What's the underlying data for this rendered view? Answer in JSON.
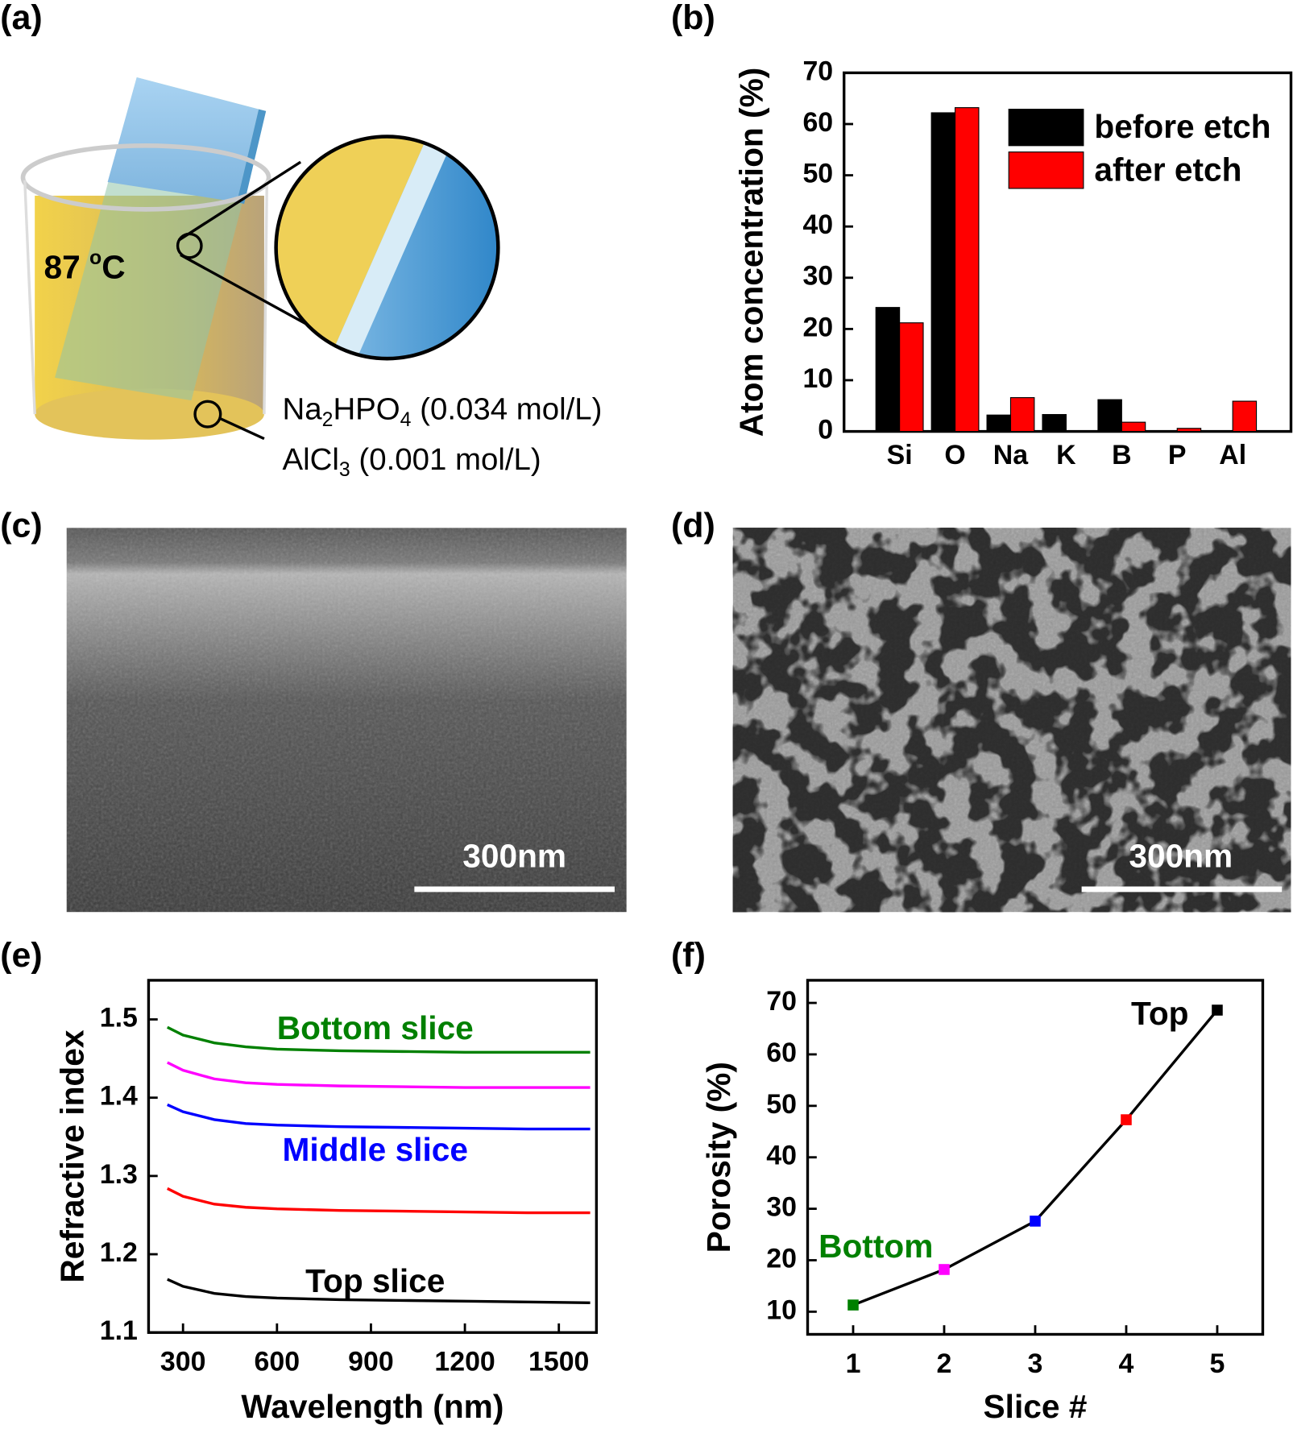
{
  "panels": {
    "labels": [
      "(a)",
      "(b)",
      "(c)",
      "(d)",
      "(e)",
      "(f)"
    ]
  },
  "illustration": {
    "temperature": [
      "87 ",
      "o",
      "C"
    ],
    "solution": [
      [
        "Na",
        "2",
        "HPO",
        "4",
        " (0.034 mol/L)"
      ],
      [
        "AlCl",
        "3",
        " (0.001 mol/L)"
      ]
    ]
  },
  "micrographs": [
    {
      "scale_bar": "300nm"
    },
    {
      "scale_bar": "300nm"
    }
  ],
  "chart_data": [
    {
      "type": "bar",
      "ylabel": "Atom concentration (%)",
      "categories": [
        "Si",
        "O",
        "Na",
        "K",
        "B",
        "P",
        "Al"
      ],
      "series": [
        {
          "name": "before etch",
          "color": "#000000",
          "values": [
            24.2,
            62.2,
            3.2,
            3.3,
            6.2,
            0,
            0
          ]
        },
        {
          "name": "after etch",
          "color": "#ff0000",
          "values": [
            21.2,
            63.2,
            6.6,
            0,
            1.8,
            0.6,
            5.9
          ]
        }
      ],
      "ylim": [
        0,
        70
      ],
      "yticks": [
        0,
        10,
        20,
        30,
        40,
        50,
        60,
        70
      ],
      "legend": "upper right"
    },
    {
      "type": "line",
      "xlabel": "Wavelength (nm)",
      "ylabel": "Refractive index",
      "x": [
        250,
        300,
        400,
        500,
        600,
        800,
        1000,
        1200,
        1400,
        1600
      ],
      "series": [
        {
          "color": "#008000",
          "values": [
            1.49,
            1.48,
            1.47,
            1.465,
            1.462,
            1.46,
            1.459,
            1.458,
            1.458,
            1.458
          ]
        },
        {
          "color": "#ff00ff",
          "values": [
            1.445,
            1.435,
            1.424,
            1.419,
            1.417,
            1.415,
            1.414,
            1.413,
            1.413,
            1.413
          ]
        },
        {
          "color": "#0000ff",
          "values": [
            1.391,
            1.382,
            1.372,
            1.367,
            1.365,
            1.363,
            1.362,
            1.361,
            1.36,
            1.36
          ]
        },
        {
          "color": "#ff0000",
          "values": [
            1.284,
            1.274,
            1.264,
            1.26,
            1.258,
            1.256,
            1.255,
            1.254,
            1.253,
            1.253
          ]
        },
        {
          "color": "#000000",
          "values": [
            1.168,
            1.159,
            1.15,
            1.146,
            1.144,
            1.142,
            1.141,
            1.14,
            1.139,
            1.138
          ]
        }
      ],
      "xlim": [
        190,
        1620
      ],
      "xticks": [
        300,
        600,
        900,
        1200,
        1500
      ],
      "ylim": [
        1.1,
        1.55
      ],
      "yticks": [
        1.1,
        1.2,
        1.3,
        1.4,
        1.5
      ],
      "annotations": [
        {
          "text": "Bottom slice",
          "color": "#008000"
        },
        {
          "text": "Middle slice",
          "color": "#0000ff"
        },
        {
          "text": "Top slice",
          "color": "#000000"
        }
      ]
    },
    {
      "type": "scatter",
      "xlabel": "Slice #",
      "ylabel": "Porosity (%)",
      "x": [
        1,
        2,
        3,
        4,
        5
      ],
      "values": [
        11.3,
        18.2,
        27.6,
        47.3,
        68.6
      ],
      "colors": [
        "#008000",
        "#ff00ff",
        "#0000ff",
        "#ff0000",
        "#000000"
      ],
      "line_color": "#000000",
      "xlim": [
        0.5,
        5.5
      ],
      "xticks": [
        1,
        2,
        3,
        4,
        5
      ],
      "ylim": [
        5.6,
        74.4
      ],
      "yticks": [
        10,
        20,
        30,
        40,
        50,
        60,
        70
      ],
      "annotations": [
        {
          "text": "Bottom",
          "color": "#008000"
        },
        {
          "text": "Top",
          "color": "#000000"
        }
      ]
    }
  ]
}
